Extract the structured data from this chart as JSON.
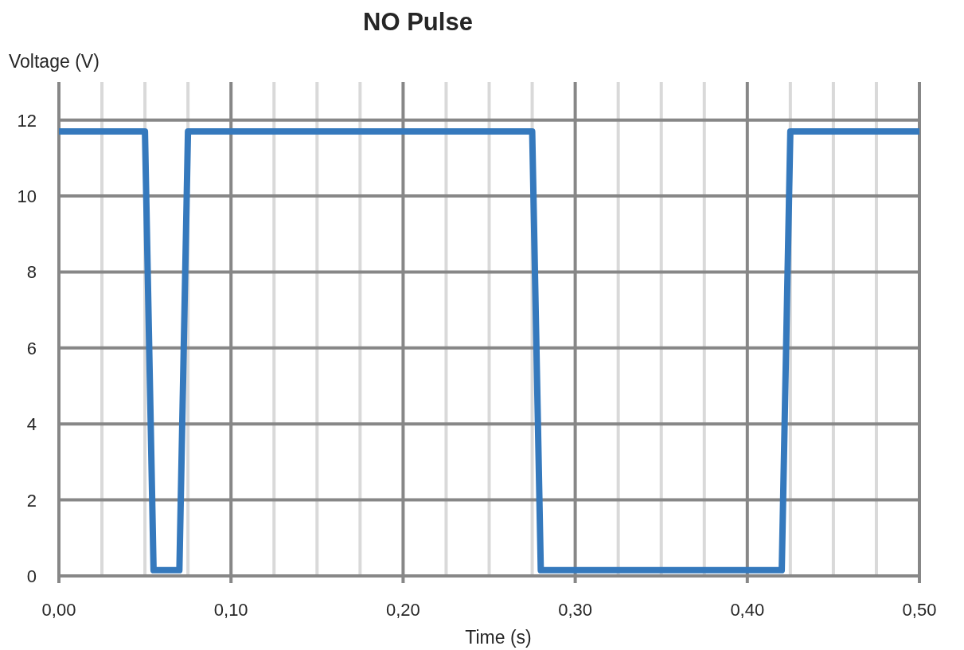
{
  "chart_data": {
    "type": "line",
    "title": "NO Pulse",
    "xlabel": "Time (s)",
    "ylabel": "Voltage (V)",
    "x": [
      0,
      0.05,
      0.055,
      0.07,
      0.075,
      0.275,
      0.28,
      0.42,
      0.425,
      0.5
    ],
    "series": [
      {
        "color": "#3579bd",
        "values": [
          11.7,
          11.7,
          0.15,
          0.15,
          11.7,
          11.7,
          0.15,
          0.15,
          11.7,
          11.7
        ]
      }
    ],
    "xlim": [
      0,
      0.5
    ],
    "xticks": [
      {
        "value": 0,
        "label": "0,00"
      },
      {
        "value": 0.025,
        "label": null
      },
      {
        "value": 0.05,
        "label": null
      },
      {
        "value": 0.075,
        "label": null
      },
      {
        "value": 0.1,
        "label": "0,10"
      },
      {
        "value": 0.125,
        "label": null
      },
      {
        "value": 0.15,
        "label": null
      },
      {
        "value": 0.175,
        "label": null
      },
      {
        "value": 0.2,
        "label": "0,20"
      },
      {
        "value": 0.225,
        "label": null
      },
      {
        "value": 0.25,
        "label": null
      },
      {
        "value": 0.275,
        "label": null
      },
      {
        "value": 0.3,
        "label": "0,30"
      },
      {
        "value": 0.325,
        "label": null
      },
      {
        "value": 0.35,
        "label": null
      },
      {
        "value": 0.375,
        "label": null
      },
      {
        "value": 0.4,
        "label": "0,40"
      },
      {
        "value": 0.425,
        "label": null
      },
      {
        "value": 0.45,
        "label": null
      },
      {
        "value": 0.475,
        "label": null
      },
      {
        "value": 0.5,
        "label": "0,50"
      }
    ],
    "ylim": [
      0,
      13
    ],
    "yticks": [
      0,
      2,
      4,
      6,
      8,
      10,
      12
    ],
    "grid": true,
    "marker": "none",
    "line_style": "solid"
  }
}
